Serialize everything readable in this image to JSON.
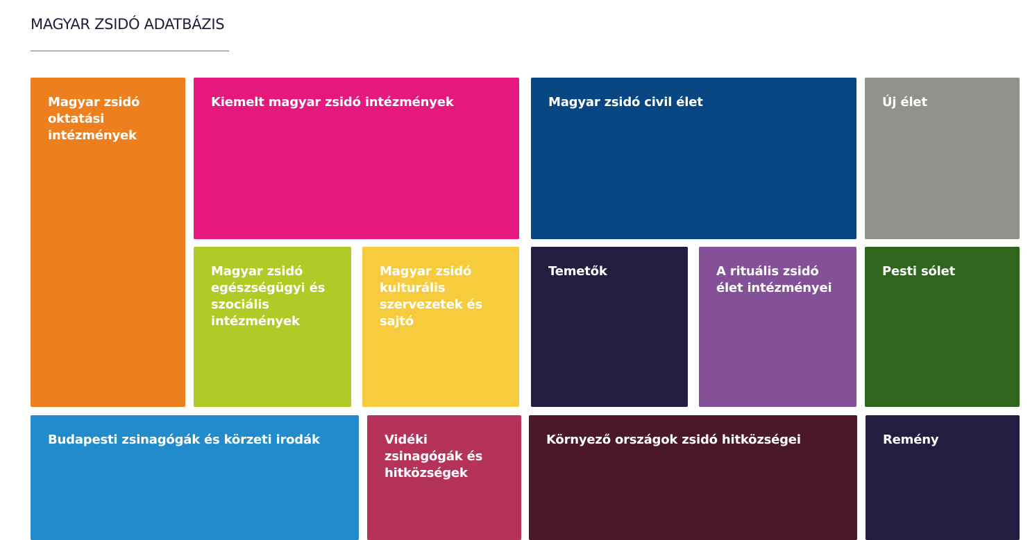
{
  "header": {
    "title": "MAGYAR ZSIDÓ ADATBÁZIS",
    "underline_color": "#3a7fae"
  },
  "tiles": [
    {
      "label": "Magyar zsidó oktatási intézmények",
      "color": "#EE7F1F"
    },
    {
      "label": "Kiemelt magyar zsidó intézmények",
      "color": "#E5197D"
    },
    {
      "label": "Magyar zsidó civil élet",
      "color": "#084683"
    },
    {
      "label": "Új élet",
      "color": "#92928C"
    },
    {
      "label": "Magyar zsidó egészségügyi és szociális intézmények",
      "color": "#AECB28"
    },
    {
      "label": "Magyar zsidó kulturális szervezetek és sajtó",
      "color": "#F7CB3E"
    },
    {
      "label": "Temetők",
      "color": "#221E42"
    },
    {
      "label": "A rituális zsidó élet intézményei",
      "color": "#845098"
    },
    {
      "label": "Pesti sólet",
      "color": "#2F661E"
    },
    {
      "label": "Budapesti zsinagógák és körzeti irodák",
      "color": "#228BCB"
    },
    {
      "label": "Vidéki zsinagógák és hitközségek",
      "color": "#B5335A"
    },
    {
      "label": "Környező országok zsidó hitközségei",
      "color": "#4B1829"
    },
    {
      "label": "Remény",
      "color": "#221E42"
    }
  ]
}
